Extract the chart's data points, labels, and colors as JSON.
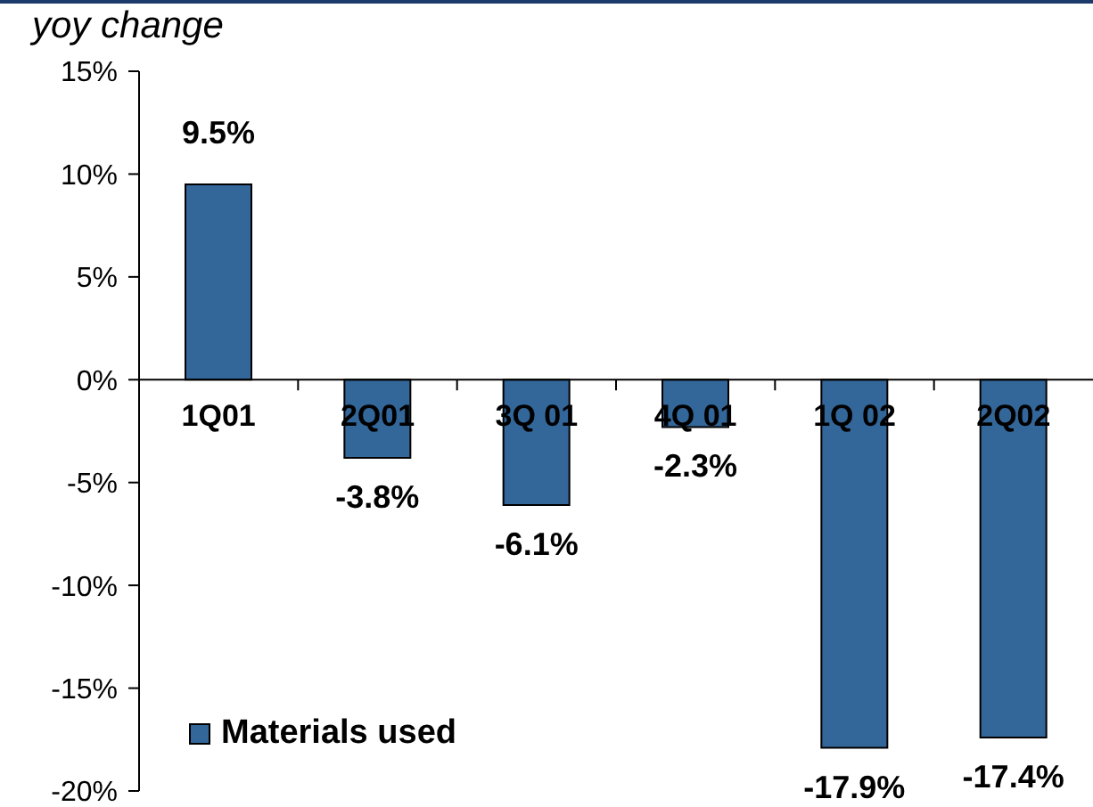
{
  "chart_data": {
    "type": "bar",
    "ylabel": "yoy change",
    "categories": [
      "1Q01",
      "2Q01",
      "3Q 01",
      "4Q 01",
      "1Q 02",
      "2Q02"
    ],
    "series": [
      {
        "name": "Materials used",
        "color": "#336699",
        "values": [
          9.5,
          -3.8,
          -6.1,
          -2.3,
          -17.9,
          -17.4
        ],
        "value_labels": [
          "9.5%",
          "-3.8%",
          "-6.1%",
          "-2.3%",
          "-17.9%",
          "-17.4%"
        ]
      }
    ],
    "ylim": [
      -20,
      15
    ],
    "yticks": [
      {
        "value": -20,
        "label": "-20%"
      },
      {
        "value": -15,
        "label": "-15%"
      },
      {
        "value": -10,
        "label": "-10%"
      },
      {
        "value": -5,
        "label": "-5%"
      },
      {
        "value": 0,
        "label": "0%"
      },
      {
        "value": 5,
        "label": "5%"
      },
      {
        "value": 10,
        "label": "10%"
      },
      {
        "value": 15,
        "label": "15%"
      }
    ],
    "grid": false,
    "legend": "bottom left"
  }
}
